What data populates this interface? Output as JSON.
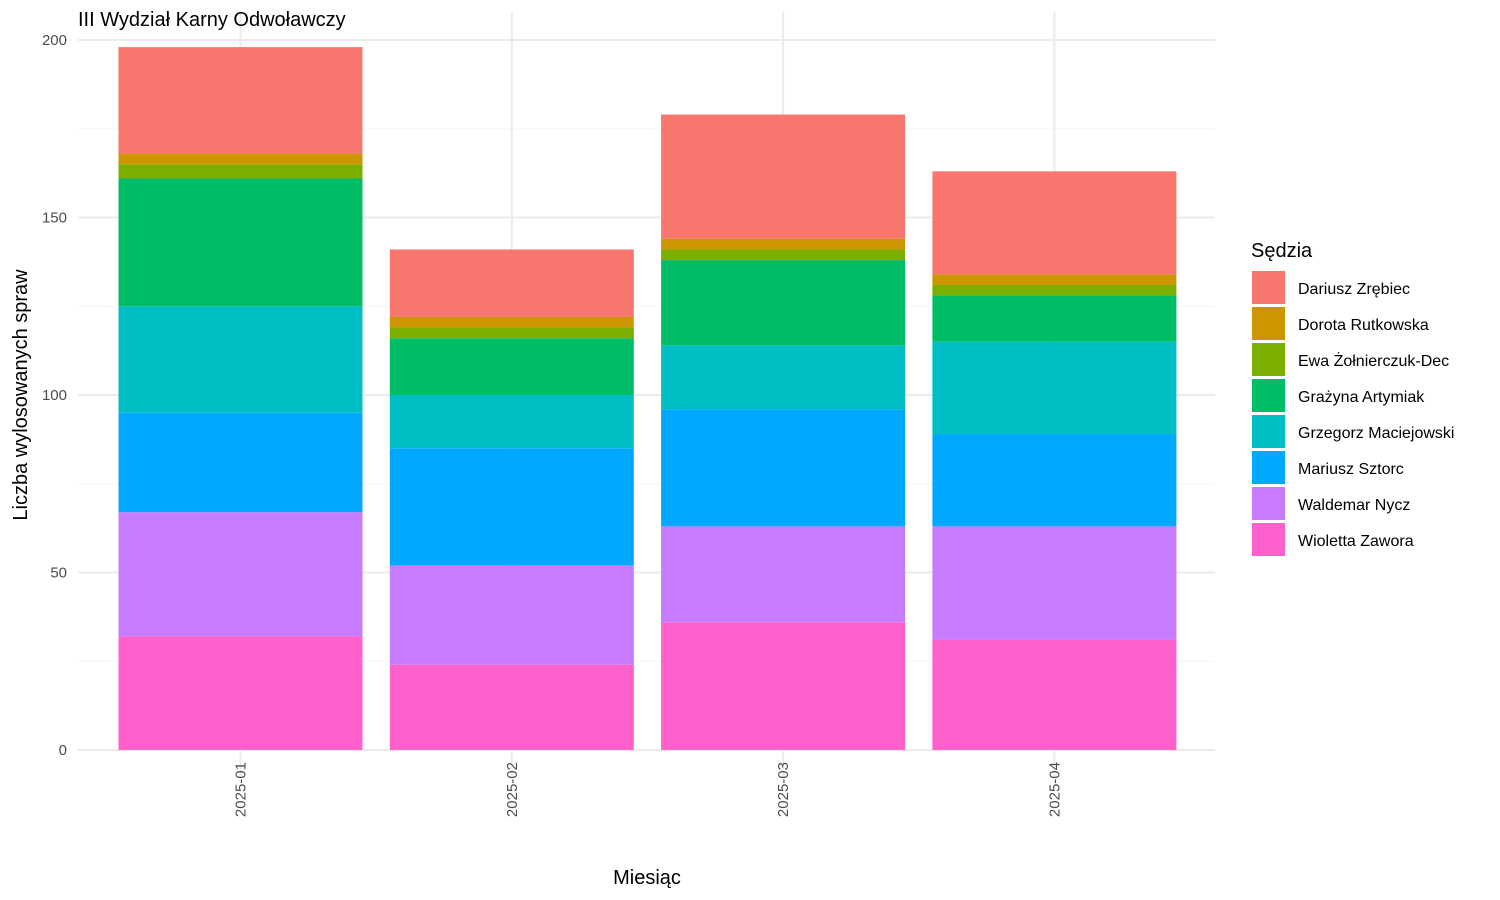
{
  "chart_data": {
    "type": "bar",
    "stacked": true,
    "title": "III Wydział Karny Odwoławczy",
    "xlabel": "Miesiąc",
    "ylabel": "Liczba wylosowanych spraw",
    "ylim": [
      0,
      200
    ],
    "yticks": [
      0,
      50,
      100,
      150,
      200
    ],
    "categories": [
      "2025-01",
      "2025-02",
      "2025-03",
      "2025-04"
    ],
    "legend_title": "Sędzia",
    "legend_position": "right",
    "grid": true,
    "series": [
      {
        "name": "Wioletta Zawora",
        "color": "#FF61CC",
        "values": [
          32,
          24,
          36,
          31
        ]
      },
      {
        "name": "Waldemar Nycz",
        "color": "#C77CFF",
        "values": [
          35,
          28,
          27,
          32
        ]
      },
      {
        "name": "Mariusz Sztorc",
        "color": "#00A9FF",
        "values": [
          28,
          33,
          33,
          26
        ]
      },
      {
        "name": "Grzegorz Maciejowski",
        "color": "#00BFC4",
        "values": [
          30,
          15,
          18,
          26
        ]
      },
      {
        "name": "Grażyna Artymiak",
        "color": "#00BE67",
        "values": [
          36,
          16,
          24,
          13
        ]
      },
      {
        "name": "Ewa Żołnierczuk-Dec",
        "color": "#7CAE00",
        "values": [
          4,
          3,
          3,
          3
        ]
      },
      {
        "name": "Dorota Rutkowska",
        "color": "#CD9600",
        "values": [
          3,
          3,
          3,
          3
        ]
      },
      {
        "name": "Dariusz Zrębiec",
        "color": "#F8766D",
        "values": [
          30,
          19,
          35,
          29
        ]
      }
    ],
    "legend_order": [
      "Dariusz Zrębiec",
      "Dorota Rutkowska",
      "Ewa Żołnierczuk-Dec",
      "Grażyna Artymiak",
      "Grzegorz Maciejowski",
      "Mariusz Sztorc",
      "Waldemar Nycz",
      "Wioletta Zawora"
    ]
  }
}
